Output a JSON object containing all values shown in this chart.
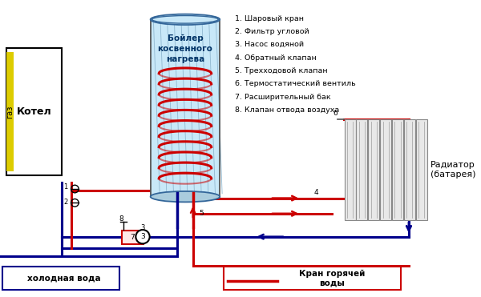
{
  "bg_color": "#ffffff",
  "legend_items": [
    "1. Шаровый кран",
    "2. Фильтр угловой",
    "3. Насос водяной",
    "4. Обратный клапан",
    "5. Трехходовой клапан",
    "6. Термостатический вентиль",
    "7. Расширительный бак",
    "8. Клапан отвода воздуха"
  ],
  "boiler_label": "Бойлер\nкосвенного\nнагрева",
  "kotel_label": "Котел",
  "gaz_label": "газ",
  "radiator_label": "Радиатор\n(батарея)",
  "cold_water_label": "холодная вода",
  "hot_water_label": "Кран горячей\nводы",
  "red": "#cc0000",
  "blue": "#00008b",
  "yellow": "#ddcc00",
  "boiler_fill": "#c8e8f8",
  "boiler_hatch": "#90b8d0"
}
